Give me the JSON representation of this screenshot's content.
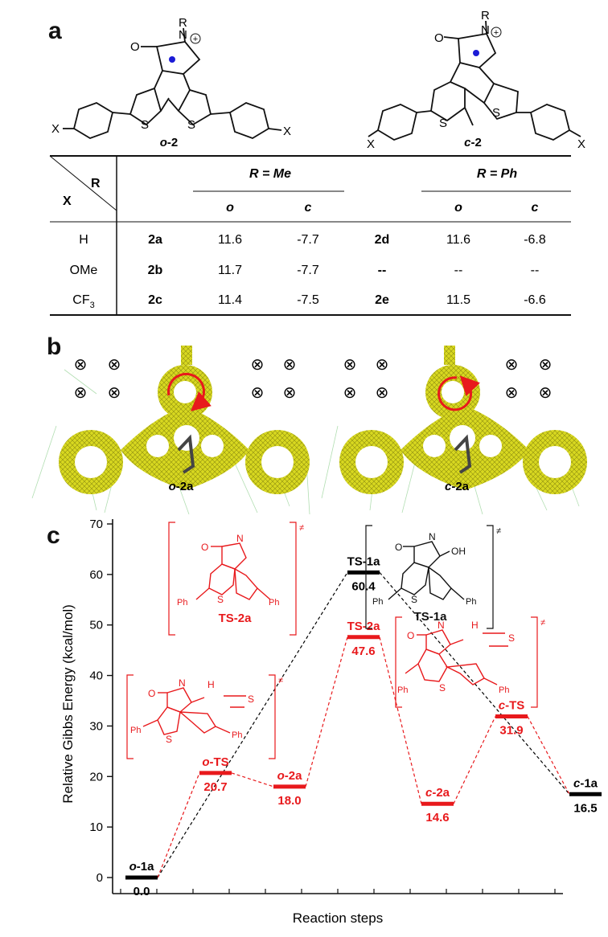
{
  "panel_a": {
    "letter": "a",
    "mol_left": {
      "label_prefix": "o",
      "label_suffix": "-2",
      "R": "R",
      "O": "O",
      "N": "N",
      "S": "S",
      "X": "X"
    },
    "mol_right": {
      "label_prefix": "c",
      "label_suffix": "-2",
      "R": "R",
      "O": "O",
      "N": "N",
      "S": "S",
      "X": "X"
    },
    "table": {
      "corner_R": "R",
      "corner_X": "X",
      "group_me": "R = Me",
      "group_ph": "R = Ph",
      "sub_o": "o",
      "sub_c": "c",
      "rows": [
        {
          "x": "H",
          "id1": "2a",
          "o1": "11.6",
          "c1": "-7.7",
          "id2": "2d",
          "o2": "11.6",
          "c2": "-6.8"
        },
        {
          "x": "OMe",
          "id1": "2b",
          "o1": "11.7",
          "c1": "-7.7",
          "id2": "--",
          "o2": "--",
          "c2": "--"
        },
        {
          "x": "CF3",
          "id1": "2c",
          "o1": "11.4",
          "c1": "-7.5",
          "id2": "2e",
          "o2": "11.5",
          "c2": "-6.6"
        }
      ]
    }
  },
  "panel_b": {
    "letter": "b",
    "left_label": "o-2a",
    "right_label": "c-2a",
    "left_label_prefix": "o",
    "right_label_prefix": "c",
    "label_suffix": "-2a",
    "marker_glyph": "⊗"
  },
  "panel_c": {
    "letter": "c",
    "chart_data": {
      "type": "line",
      "ylabel": "Relative Gibbs Energy (kcal/mol)",
      "xlabel": "Reaction steps",
      "ylim": [
        0,
        70
      ],
      "yticks": [
        0,
        10,
        20,
        30,
        40,
        50,
        60,
        70
      ],
      "colors": {
        "black": "#000000",
        "red": "#e8191c"
      },
      "levels": [
        {
          "id": "o1a",
          "name_prefix": "o",
          "name": "-1a",
          "value": 0.0,
          "value_label": "0.0",
          "color": "black",
          "step": 0
        },
        {
          "id": "oTS",
          "name_prefix": "o",
          "name": "-TS",
          "value": 20.7,
          "value_label": "20.7",
          "color": "red",
          "step": 1
        },
        {
          "id": "o2a",
          "name_prefix": "o",
          "name": "-2a",
          "value": 18.0,
          "value_label": "18.0",
          "color": "red",
          "step": 2
        },
        {
          "id": "TS1a",
          "name_prefix": "",
          "name": "TS-1a",
          "value": 60.4,
          "value_label": "60.4",
          "color": "black",
          "step": 3
        },
        {
          "id": "TS2a",
          "name_prefix": "",
          "name": "TS-2a",
          "value": 47.6,
          "value_label": "47.6",
          "color": "red",
          "step": 3
        },
        {
          "id": "c2a",
          "name_prefix": "c",
          "name": "-2a",
          "value": 14.6,
          "value_label": "14.6",
          "color": "red",
          "step": 4
        },
        {
          "id": "cTS",
          "name_prefix": "c",
          "name": "-TS",
          "value": 31.9,
          "value_label": "31.9",
          "color": "red",
          "step": 5
        },
        {
          "id": "c1a",
          "name_prefix": "c",
          "name": "-1a",
          "value": 16.5,
          "value_label": "16.5",
          "color": "black",
          "step": 6
        }
      ],
      "black_path": [
        "o1a",
        "TS1a",
        "c1a"
      ],
      "red_path": [
        "o1a",
        "oTS",
        "o2a",
        "TS2a",
        "c2a",
        "cTS",
        "c1a"
      ]
    },
    "structures": {
      "ts2a": {
        "title": "TS-2a",
        "Ph": "Ph",
        "S": "S",
        "O": "O",
        "N": "N",
        "dagger": "≠"
      },
      "ts1a": {
        "title": "TS-1a",
        "Ph": "Ph",
        "S": "S",
        "O": "O",
        "N": "N",
        "OH": "OH",
        "dagger": "≠"
      },
      "ots": {
        "Ph": "Ph",
        "S": "S",
        "O": "O",
        "N": "N",
        "H": "H",
        "dagger": "≠"
      },
      "cts": {
        "Ph": "Ph",
        "S": "S",
        "O": "O",
        "N": "N",
        "H": "H",
        "dagger": "≠"
      }
    }
  }
}
